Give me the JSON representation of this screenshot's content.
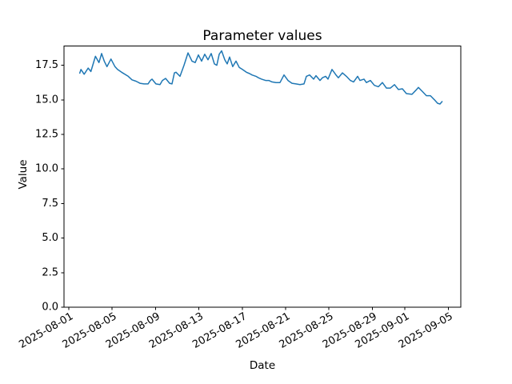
{
  "chart_data": {
    "type": "line",
    "title": "Parameter values",
    "xlabel": "Date",
    "ylabel": "Value",
    "line_color": "#1f77b4",
    "background": "#ffffff",
    "grid": false,
    "legend": "none",
    "x_origin": "2025-08-01",
    "xlim_days": [
      -0.44,
      36.16
    ],
    "ylim": [
      0,
      18.89
    ],
    "yticks": [
      {
        "value": 0.0,
        "label": "0.0"
      },
      {
        "value": 2.5,
        "label": "2.5"
      },
      {
        "value": 5.0,
        "label": "5.0"
      },
      {
        "value": 7.5,
        "label": "7.5"
      },
      {
        "value": 10.0,
        "label": "10.0"
      },
      {
        "value": 12.5,
        "label": "12.5"
      },
      {
        "value": 15.0,
        "label": "15.0"
      },
      {
        "value": 17.5,
        "label": "17.5"
      }
    ],
    "xticks": [
      {
        "date": "2025-08-01",
        "label": "2025-08-01"
      },
      {
        "date": "2025-08-05",
        "label": "2025-08-05"
      },
      {
        "date": "2025-08-09",
        "label": "2025-08-09"
      },
      {
        "date": "2025-08-13",
        "label": "2025-08-13"
      },
      {
        "date": "2025-08-17",
        "label": "2025-08-17"
      },
      {
        "date": "2025-08-21",
        "label": "2025-08-21"
      },
      {
        "date": "2025-08-25",
        "label": "2025-08-25"
      },
      {
        "date": "2025-08-29",
        "label": "2025-08-29"
      },
      {
        "date": "2025-09-01",
        "label": "2025-09-01"
      },
      {
        "date": "2025-09-05",
        "label": "2025-09-05"
      }
    ],
    "series": [
      {
        "name": "parameter-values",
        "points": [
          [
            "2025-08-02T00:00",
            16.9
          ],
          [
            "2025-08-02T03:00",
            17.2
          ],
          [
            "2025-08-02T10:00",
            16.85
          ],
          [
            "2025-08-02T19:00",
            17.3
          ],
          [
            "2025-08-03T01:00",
            17.05
          ],
          [
            "2025-08-03T11:00",
            18.15
          ],
          [
            "2025-08-03T18:45",
            17.7
          ],
          [
            "2025-08-04T00:40",
            18.35
          ],
          [
            "2025-08-04T06:30",
            17.8
          ],
          [
            "2025-08-04T12:30",
            17.4
          ],
          [
            "2025-08-04T21:20",
            17.95
          ],
          [
            "2025-08-05T06:10",
            17.4
          ],
          [
            "2025-08-05T12:00",
            17.2
          ],
          [
            "2025-08-05T20:55",
            17.0
          ],
          [
            "2025-08-06T11:35",
            16.7
          ],
          [
            "2025-08-06T20:00",
            16.45
          ],
          [
            "2025-08-07T04:45",
            16.35
          ],
          [
            "2025-08-07T13:40",
            16.2
          ],
          [
            "2025-08-07T22:30",
            16.15
          ],
          [
            "2025-08-08T07:20",
            16.15
          ],
          [
            "2025-08-08T12:40",
            16.4
          ],
          [
            "2025-08-08T16:10",
            16.5
          ],
          [
            "2025-08-09T01:00",
            16.15
          ],
          [
            "2025-08-09T10:00",
            16.1
          ],
          [
            "2025-08-09T15:15",
            16.4
          ],
          [
            "2025-08-09T22:20",
            16.55
          ],
          [
            "2025-08-10T07:10",
            16.2
          ],
          [
            "2025-08-10T12:30",
            16.15
          ],
          [
            "2025-08-10T17:50",
            16.95
          ],
          [
            "2025-08-10T21:20",
            17.0
          ],
          [
            "2025-08-11T06:10",
            16.7
          ],
          [
            "2025-08-11T15:00",
            17.5
          ],
          [
            "2025-08-12T00:00",
            18.4
          ],
          [
            "2025-08-12T08:45",
            17.8
          ],
          [
            "2025-08-12T15:50",
            17.7
          ],
          [
            "2025-08-12T23:00",
            18.25
          ],
          [
            "2025-08-13T06:00",
            17.8
          ],
          [
            "2025-08-13T13:00",
            18.3
          ],
          [
            "2025-08-13T20:10",
            17.9
          ],
          [
            "2025-08-14T03:15",
            18.35
          ],
          [
            "2025-08-14T10:20",
            17.6
          ],
          [
            "2025-08-14T15:40",
            17.5
          ],
          [
            "2025-08-14T21:00",
            18.3
          ],
          [
            "2025-08-15T02:20",
            18.55
          ],
          [
            "2025-08-15T09:25",
            17.9
          ],
          [
            "2025-08-15T14:40",
            17.6
          ],
          [
            "2025-08-15T20:00",
            18.1
          ],
          [
            "2025-08-16T03:00",
            17.4
          ],
          [
            "2025-08-16T10:10",
            17.8
          ],
          [
            "2025-08-16T17:15",
            17.35
          ],
          [
            "2025-08-17T00:20",
            17.2
          ],
          [
            "2025-08-17T09:15",
            17.0
          ],
          [
            "2025-08-17T16:20",
            16.9
          ],
          [
            "2025-08-17T21:40",
            16.8
          ],
          [
            "2025-08-18T06:30",
            16.7
          ],
          [
            "2025-08-18T11:45",
            16.6
          ],
          [
            "2025-08-18T18:50",
            16.5
          ],
          [
            "2025-08-19T03:45",
            16.4
          ],
          [
            "2025-08-19T10:50",
            16.4
          ],
          [
            "2025-08-19T17:50",
            16.3
          ],
          [
            "2025-08-20T02:45",
            16.25
          ],
          [
            "2025-08-20T11:35",
            16.25
          ],
          [
            "2025-08-20T20:30",
            16.8
          ],
          [
            "2025-08-21T05:20",
            16.4
          ],
          [
            "2025-08-21T14:10",
            16.2
          ],
          [
            "2025-08-21T23:00",
            16.15
          ],
          [
            "2025-08-22T07:50",
            16.1
          ],
          [
            "2025-08-22T16:45",
            16.15
          ],
          [
            "2025-08-22T22:00",
            16.7
          ],
          [
            "2025-08-23T05:10",
            16.8
          ],
          [
            "2025-08-23T14:00",
            16.5
          ],
          [
            "2025-08-23T19:20",
            16.75
          ],
          [
            "2025-08-24T04:10",
            16.4
          ],
          [
            "2025-08-24T09:30",
            16.6
          ],
          [
            "2025-08-24T16:30",
            16.7
          ],
          [
            "2025-08-24T21:50",
            16.5
          ],
          [
            "2025-08-25T06:45",
            17.2
          ],
          [
            "2025-08-25T15:35",
            16.8
          ],
          [
            "2025-08-25T20:55",
            16.6
          ],
          [
            "2025-08-26T05:45",
            16.95
          ],
          [
            "2025-08-26T14:40",
            16.7
          ],
          [
            "2025-08-26T23:30",
            16.4
          ],
          [
            "2025-08-27T06:30",
            16.3
          ],
          [
            "2025-08-27T15:25",
            16.7
          ],
          [
            "2025-08-27T20:45",
            16.4
          ],
          [
            "2025-08-28T05:35",
            16.5
          ],
          [
            "2025-08-28T10:55",
            16.25
          ],
          [
            "2025-08-28T19:45",
            16.4
          ],
          [
            "2025-08-29T04:35",
            16.05
          ],
          [
            "2025-08-29T13:30",
            15.95
          ],
          [
            "2025-08-29T22:20",
            16.25
          ],
          [
            "2025-08-30T07:10",
            15.85
          ],
          [
            "2025-08-30T16:00",
            15.85
          ],
          [
            "2025-08-31T01:00",
            16.1
          ],
          [
            "2025-08-31T09:45",
            15.75
          ],
          [
            "2025-08-31T18:35",
            15.8
          ],
          [
            "2025-09-01T03:25",
            15.45
          ],
          [
            "2025-09-01T15:50",
            15.4
          ],
          [
            "2025-09-02T00:45",
            15.7
          ],
          [
            "2025-09-02T06:00",
            15.9
          ],
          [
            "2025-09-02T14:50",
            15.6
          ],
          [
            "2025-09-02T23:45",
            15.3
          ],
          [
            "2025-09-03T08:35",
            15.3
          ],
          [
            "2025-09-03T17:30",
            15.0
          ],
          [
            "2025-09-04T00:30",
            14.75
          ],
          [
            "2025-09-04T05:50",
            14.7
          ],
          [
            "2025-09-04T11:10",
            14.9
          ]
        ]
      }
    ]
  }
}
